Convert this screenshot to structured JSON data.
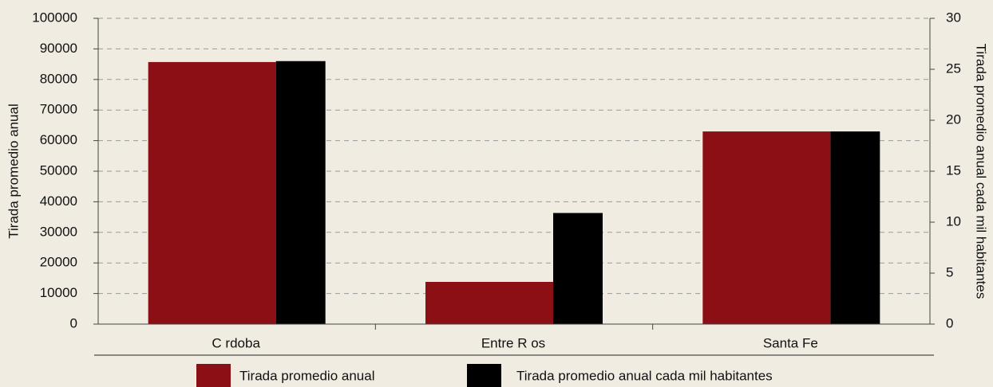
{
  "chart_data": {
    "type": "bar",
    "categories": [
      "C rdoba",
      "Entre R os",
      "Santa Fe"
    ],
    "y_label": "Tirada promedio anual",
    "y2_label": "Tirada promedio anual cada mil habitantes",
    "series": [
      {
        "name": "Tirada promedio anual",
        "color": "#8b0f14",
        "values": [
          85700,
          13800,
          63000
        ]
      },
      {
        "name": "Tirada promedio anual cada mil habitantes",
        "color": "#000000",
        "axis": "y2",
        "values": [
          25.8,
          10.9,
          18.9
        ]
      }
    ],
    "ylim": [
      0,
      100000
    ],
    "yticks": [
      0,
      10000,
      20000,
      30000,
      40000,
      50000,
      60000,
      70000,
      80000,
      90000,
      100000
    ],
    "y2lim": [
      0,
      30
    ],
    "y2ticks": [
      0,
      5,
      10,
      15,
      20,
      25,
      30
    ],
    "grid": true,
    "legend": "bottom"
  }
}
